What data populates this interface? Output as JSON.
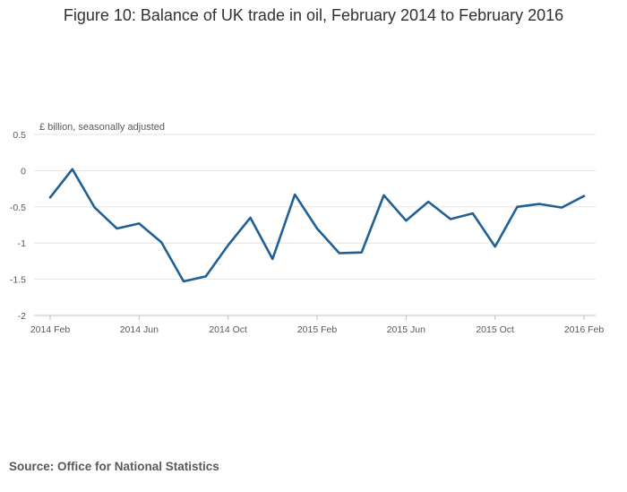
{
  "chart_data": {
    "type": "line",
    "title": "Figure 10: Balance of UK trade in oil, February 2014 to February 2016",
    "unit_label": "£ billion, seasonally adjusted",
    "x": [
      "2014 Feb",
      "2014 Mar",
      "2014 Apr",
      "2014 May",
      "2014 Jun",
      "2014 Jul",
      "2014 Aug",
      "2014 Sep",
      "2014 Oct",
      "2014 Nov",
      "2014 Dec",
      "2015 Jan",
      "2015 Feb",
      "2015 Mar",
      "2015 Apr",
      "2015 May",
      "2015 Jun",
      "2015 Jul",
      "2015 Aug",
      "2015 Sep",
      "2015 Oct",
      "2015 Nov",
      "2015 Dec",
      "2016 Jan",
      "2016 Feb"
    ],
    "series": [
      {
        "values": [
          -0.37,
          0.02,
          -0.51,
          -0.8,
          -0.73,
          -0.99,
          -1.53,
          -1.46,
          -1.03,
          -0.65,
          -1.22,
          -0.33,
          -0.8,
          -1.14,
          -1.13,
          -0.34,
          -0.69,
          -0.43,
          -0.67,
          -0.59,
          -1.05,
          -0.5,
          -0.46,
          -0.51,
          -0.35
        ],
        "color": "#206095"
      }
    ],
    "x_tick_labels": [
      "2014 Feb",
      "2014 Jun",
      "2014 Oct",
      "2015 Feb",
      "2015 Jun",
      "2015 Oct",
      "2016 Feb"
    ],
    "y_ticks": [
      0.5,
      0,
      -0.5,
      -1,
      -1.5,
      -2
    ],
    "y_tick_labels": [
      "0.5",
      "0",
      "-0.5",
      "-1",
      "-1.5",
      "-2"
    ],
    "ylim": [
      -2,
      0.5
    ],
    "grid": true,
    "legend": "none"
  },
  "source": "Source: Office for National Statistics"
}
